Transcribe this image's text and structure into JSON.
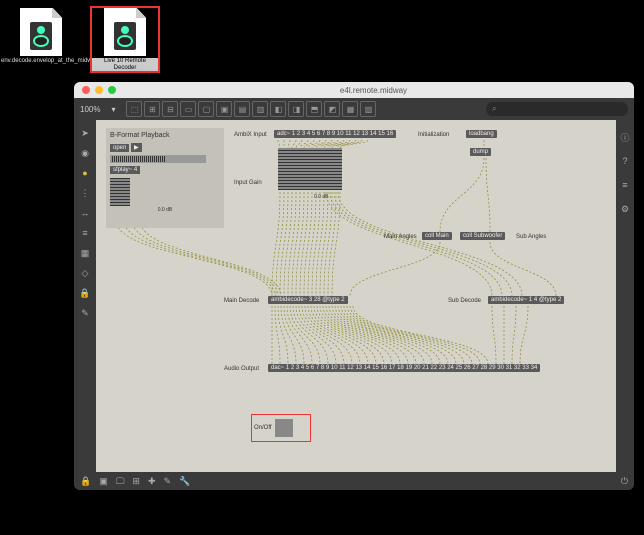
{
  "desktop": {
    "files": [
      {
        "name": "env.decode.envelop_at_the_midway.maxpat",
        "selected": false
      },
      {
        "name": "Live 10 Remote Decoder",
        "selected": true
      }
    ]
  },
  "window": {
    "title": "e4l.remote.midway",
    "traffic": [
      "#ff5f56",
      "#ffbd2e",
      "#27c93f"
    ],
    "zoom": "100%",
    "toolbar_icons": [
      "⬚",
      "⊞",
      "⊟",
      "▭",
      "▢",
      "▣",
      "▤",
      "▥",
      "◧",
      "◨",
      "⬒",
      "◩",
      "▦",
      "▧"
    ],
    "search_placeholder": "Search",
    "left_icons": [
      "➤",
      "◉",
      "●",
      "⋮",
      "↔",
      "≡",
      "▦",
      "◇",
      "🔒",
      "✎"
    ],
    "left_highlight_color": "#d9c23a",
    "right_icons": [
      "ⓘ",
      "?",
      "≡",
      "⚙"
    ],
    "bottom_icons": [
      "🔒",
      "▣",
      "🖵",
      "⊞",
      "✚",
      "✎",
      "🔧"
    ],
    "bottom_right": "⏻"
  },
  "patch": {
    "canvas_bg": "#d6d3cb",
    "panel": {
      "title": "B-Format Playback",
      "buttons": [
        "open",
        "▶"
      ],
      "sfplay": "sfplay~ 4",
      "db": "0.0 dB"
    },
    "labels": {
      "ambix": "AmbiX Input",
      "gain": "Input Gain",
      "init": "Initialization",
      "mainAngles": "Main Angles",
      "subAngles": "Sub Angles",
      "mainDecode": "Main Decode",
      "subDecode": "Sub Decode",
      "audioOut": "Audio Output",
      "onoff": "On/Off"
    },
    "objects": {
      "adc": "adc~ 1 2 3 4 5 6 7 8 9 10 11 12 13 14 15 16",
      "loadbang": "loadbang",
      "dump": "dump",
      "collMain": "coll Main",
      "collSub": "coll Subwoofer",
      "decodeMain": "ambidecode~ 3 28 @type 2",
      "decodeSub": "ambidecode~ 1 4 @type 2",
      "dac": "dac~ 1 2 3 4 5 6 7 8 9 10 11 12 13 14 15 16 17 18 19 20 21 22 23 24 25 26 27 28 29 30 31 32 33 34",
      "gain_db": "0.0 dB"
    },
    "style": {
      "obj_bg": "#5a5a5a",
      "obj_fg": "#eeeeee",
      "wire_color": "#8a8a2a",
      "wire_dash": "2,2",
      "highlight": "#e33333",
      "meter_height": 42,
      "adc_channels": 16,
      "dac_channels": 34
    }
  }
}
